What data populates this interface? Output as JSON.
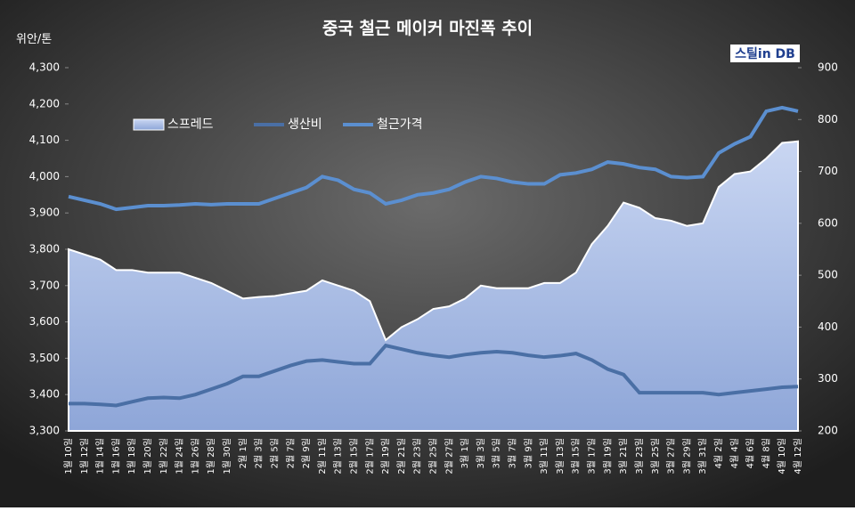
{
  "chart_data": {
    "type": "dual-axis",
    "title": "중국 철근 메이커 마진폭 추이",
    "y_label": "위안/톤",
    "logo": "스틸in DB",
    "categories": [
      "1월 10일",
      "1월 12일",
      "1월 14일",
      "1월 16일",
      "1월 18일",
      "1월 20일",
      "1월 22일",
      "1월 24일",
      "1월 26일",
      "1월 28일",
      "1월 30일",
      "2월 1일",
      "2월 3일",
      "2월 5일",
      "2월 7일",
      "2월 9일",
      "2월 11일",
      "2월 13일",
      "2월 15일",
      "2월 17일",
      "2월 19일",
      "2월 21일",
      "2월 23일",
      "2월 25일",
      "2월 27일",
      "3월 1일",
      "3월 3일",
      "3월 5일",
      "3월 7일",
      "3월 9일",
      "3월 11일",
      "3월 13일",
      "3월 15일",
      "3월 17일",
      "3월 19일",
      "3월 21일",
      "3월 23일",
      "3월 25일",
      "3월 27일",
      "3월 29일",
      "3월 31일",
      "4월 2일",
      "4월 4일",
      "4월 6일",
      "4월 8일",
      "4월 10일",
      "4월 12일"
    ],
    "series": [
      {
        "name": "스프레드",
        "color": "#a9bde6",
        "kind": "area",
        "axis": "y2",
        "values": [
          550,
          540,
          530,
          510,
          510,
          505,
          505,
          505,
          495,
          485,
          470,
          455,
          458,
          460,
          465,
          470,
          490,
          480,
          470,
          450,
          375,
          400,
          415,
          435,
          440,
          455,
          480,
          475,
          475,
          475,
          485,
          485,
          505,
          560,
          595,
          640,
          630,
          610,
          605,
          595,
          600,
          670,
          695,
          700,
          725,
          755,
          758
        ]
      },
      {
        "name": "생산비",
        "color": "#4a6fa5",
        "kind": "line",
        "values": [
          3375,
          3375,
          3373,
          3370,
          3380,
          3390,
          3392,
          3390,
          3400,
          3415,
          3430,
          3450,
          3450,
          3465,
          3480,
          3492,
          3495,
          3490,
          3485,
          3485,
          3535,
          3525,
          3515,
          3508,
          3503,
          3510,
          3515,
          3518,
          3515,
          3508,
          3503,
          3507,
          3513,
          3495,
          3470,
          3455,
          3405,
          3405,
          3405,
          3405,
          3405,
          3400,
          3405,
          3410,
          3415,
          3420,
          3422
        ]
      },
      {
        "name": "철근가격",
        "color": "#5b8fd0",
        "kind": "line",
        "values": [
          3945,
          3935,
          3925,
          3910,
          3915,
          3920,
          3920,
          3922,
          3925,
          3923,
          3925,
          3925,
          3925,
          3940,
          3955,
          3970,
          4000,
          3990,
          3965,
          3955,
          3925,
          3935,
          3950,
          3955,
          3965,
          3985,
          4000,
          3995,
          3985,
          3980,
          3980,
          4005,
          4010,
          4020,
          4040,
          4035,
          4025,
          4020,
          4000,
          3997,
          4000,
          4065,
          4090,
          4110,
          4180,
          4190,
          4180
        ]
      }
    ],
    "ylim": [
      3300,
      4300
    ],
    "yticks": [
      {
        "value": 3300,
        "label": "3,300"
      },
      {
        "value": 3400,
        "label": "3,400"
      },
      {
        "value": 3500,
        "label": "3,500"
      },
      {
        "value": 3600,
        "label": "3,600"
      },
      {
        "value": 3700,
        "label": "3,700"
      },
      {
        "value": 3800,
        "label": "3,800"
      },
      {
        "value": 3900,
        "label": "3,900"
      },
      {
        "value": 4000,
        "label": "4,000"
      },
      {
        "value": 4100,
        "label": "4,100"
      },
      {
        "value": 4200,
        "label": "4,200"
      },
      {
        "value": 4300,
        "label": "4,300"
      }
    ],
    "y2lim": [
      200,
      900
    ],
    "y2ticks": [
      200,
      300,
      400,
      500,
      600,
      700,
      800,
      900
    ],
    "legend": "upper-left"
  }
}
